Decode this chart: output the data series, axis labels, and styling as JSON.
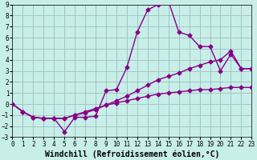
{
  "bg_color": "#c8eee8",
  "grid_color": "#9bbfbf",
  "line_color": "#880088",
  "xlim": [
    0,
    23
  ],
  "ylim": [
    -3,
    9
  ],
  "xticks": [
    0,
    1,
    2,
    3,
    4,
    5,
    6,
    7,
    8,
    9,
    10,
    11,
    12,
    13,
    14,
    15,
    16,
    17,
    18,
    19,
    20,
    21,
    22,
    23
  ],
  "yticks": [
    -3,
    -2,
    -1,
    0,
    1,
    2,
    3,
    4,
    5,
    6,
    7,
    8,
    9
  ],
  "xlabel": "Windchill (Refroidissement éolien,°C)",
  "font_family": "monospace",
  "tick_fontsize": 5.5,
  "label_fontsize": 7.0,
  "lw": 1.0,
  "ms": 2.5,
  "curve1_x": [
    0,
    1,
    2,
    3,
    4,
    5,
    6,
    7,
    8,
    9,
    10,
    11,
    12,
    13,
    14,
    15,
    16,
    17,
    18,
    19,
    20,
    21,
    22,
    23
  ],
  "curve1_y": [
    0,
    -0.7,
    -1.2,
    -1.3,
    -1.3,
    -2.5,
    -1.2,
    -1.2,
    -1.1,
    1.2,
    1.3,
    3.3,
    6.5,
    8.5,
    9.0,
    9.3,
    6.5,
    6.2,
    5.2,
    5.2,
    3.0,
    4.5,
    3.2,
    3.2
  ],
  "curve2_x": [
    0,
    1,
    2,
    3,
    4,
    5,
    6,
    7,
    8,
    9,
    10,
    11,
    12,
    13,
    14,
    15,
    16,
    17,
    18,
    19,
    20,
    21,
    22,
    23
  ],
  "curve2_y": [
    0,
    -0.7,
    -1.2,
    -1.3,
    -1.3,
    -1.3,
    -1.0,
    -0.8,
    -0.5,
    -0.1,
    0.3,
    0.7,
    1.2,
    1.7,
    2.2,
    2.5,
    2.8,
    3.2,
    3.5,
    3.8,
    4.0,
    4.8,
    3.2,
    3.2
  ],
  "curve3_x": [
    0,
    1,
    2,
    3,
    4,
    5,
    6,
    7,
    8,
    9,
    10,
    11,
    12,
    13,
    14,
    15,
    16,
    17,
    18,
    19,
    20,
    21,
    22,
    23
  ],
  "curve3_y": [
    0,
    -0.7,
    -1.2,
    -1.3,
    -1.3,
    -1.3,
    -1.0,
    -0.7,
    -0.4,
    -0.1,
    0.1,
    0.3,
    0.5,
    0.7,
    0.9,
    1.0,
    1.1,
    1.2,
    1.3,
    1.3,
    1.4,
    1.5,
    1.5,
    1.5
  ]
}
